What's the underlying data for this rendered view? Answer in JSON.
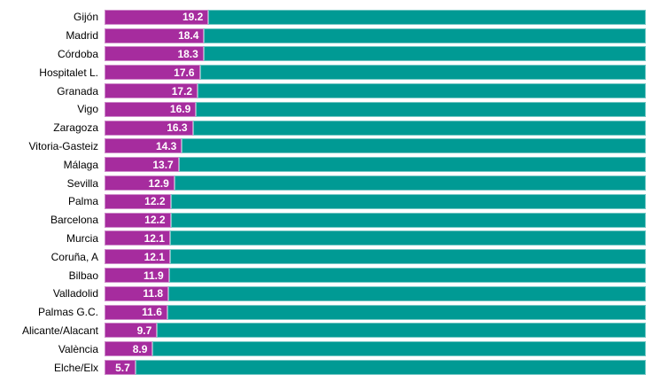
{
  "chart_data": {
    "type": "bar",
    "orientation": "horizontal",
    "stacked": true,
    "title": "",
    "xlabel": "",
    "ylabel": "",
    "xlim": [
      0,
      100
    ],
    "grid": false,
    "legend": "none",
    "total_per_bar": 100,
    "categories": [
      "Gijón",
      "Madrid",
      "Córdoba",
      "Hospitalet L.",
      "Granada",
      "Vigo",
      "Zaragoza",
      "Vitoria-Gasteiz",
      "Málaga",
      "Sevilla",
      "Palma",
      "Barcelona",
      "Murcia",
      "Coruña, A",
      "Bilbao",
      "Valladolid",
      "Palmas G.C.",
      "Alicante/Alacant",
      "València",
      "Elche/Elx"
    ],
    "values": [
      19.2,
      18.4,
      18.3,
      17.6,
      17.2,
      16.9,
      16.3,
      14.3,
      13.7,
      12.9,
      12.2,
      12.2,
      12.1,
      12.1,
      11.9,
      11.8,
      11.6,
      9.7,
      8.9,
      5.7
    ],
    "value_labels": [
      "19.2",
      "18.4",
      "18.3",
      "17.6",
      "17.2",
      "16.9",
      "16.3",
      "14.3",
      "13.7",
      "12.9",
      "12.2",
      "12.2",
      "12.1",
      "12.1",
      "11.9",
      "11.8",
      "11.6",
      "9.7",
      "8.9",
      "5.7"
    ],
    "series": [
      {
        "name": "value",
        "color": "#a62c9e"
      },
      {
        "name": "remainder",
        "color": "#009a94"
      }
    ],
    "colors": {
      "value_segment": "#a62c9e",
      "remainder_segment": "#009a94",
      "value_text": "#ffffff",
      "category_text": "#000000",
      "background": "#ffffff"
    }
  }
}
